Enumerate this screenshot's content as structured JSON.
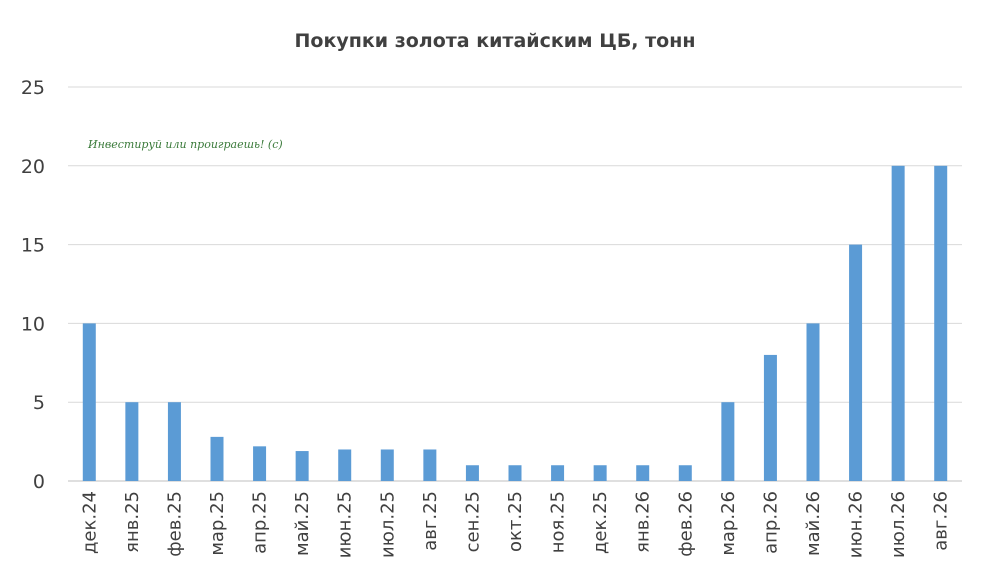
{
  "chart_data": {
    "type": "bar",
    "title": "Покупки золота китайским ЦБ, тонн",
    "annotation": "Инвестируй или проиграешь! (с)",
    "categories": [
      "дек.24",
      "янв.25",
      "фев.25",
      "мар.25",
      "апр.25",
      "май.25",
      "июн.25",
      "июл.25",
      "авг.25",
      "сен.25",
      "окт.25",
      "ноя.25",
      "дек.25",
      "янв.26",
      "фев.26",
      "мар.26",
      "апр.26",
      "май.26",
      "июн.26",
      "июл.26",
      "авг.26"
    ],
    "values": [
      10,
      5,
      5,
      2.8,
      2.2,
      1.9,
      2,
      2,
      2,
      1,
      1,
      1,
      1,
      1,
      1,
      5,
      8,
      10,
      15,
      20,
      20
    ],
    "yticks": [
      "0",
      "5",
      "10",
      "15",
      "20",
      "25"
    ],
    "ylim": [
      0,
      25
    ],
    "grid": true,
    "bar_color": "#5b9bd5",
    "xlabel": "",
    "ylabel": ""
  }
}
